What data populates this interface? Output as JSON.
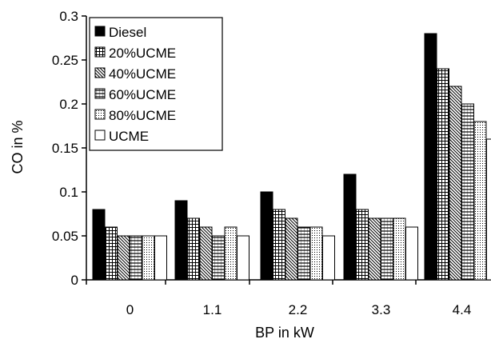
{
  "chart_data": {
    "type": "bar",
    "title": "",
    "xlabel": "BP in kW",
    "ylabel": "CO in %",
    "categories": [
      "0",
      "1.1",
      "2.2",
      "3.3",
      "4.4"
    ],
    "ylim": [
      0,
      0.3
    ],
    "yticks": [
      "0",
      "0.05",
      "0.1",
      "0.15",
      "0.2",
      "0.25",
      "0.3"
    ],
    "grid": false,
    "legend_position": "top-left",
    "series": [
      {
        "name": "Diesel",
        "pattern": "solid-black",
        "values": [
          0.08,
          0.09,
          0.1,
          0.12,
          0.28
        ]
      },
      {
        "name": "20%UCME",
        "pattern": "grid",
        "values": [
          0.06,
          0.07,
          0.08,
          0.08,
          0.24
        ]
      },
      {
        "name": "40%UCME",
        "pattern": "diagonal-hatch",
        "values": [
          0.05,
          0.06,
          0.07,
          0.07,
          0.22
        ]
      },
      {
        "name": "60%UCME",
        "pattern": "horizontal-hatch",
        "values": [
          0.05,
          0.05,
          0.06,
          0.07,
          0.2
        ]
      },
      {
        "name": "80%UCME",
        "pattern": "dotted",
        "values": [
          0.05,
          0.06,
          0.06,
          0.07,
          0.18
        ]
      },
      {
        "name": "UCME",
        "pattern": "white",
        "values": [
          0.05,
          0.05,
          0.05,
          0.06,
          0.16
        ]
      }
    ]
  }
}
